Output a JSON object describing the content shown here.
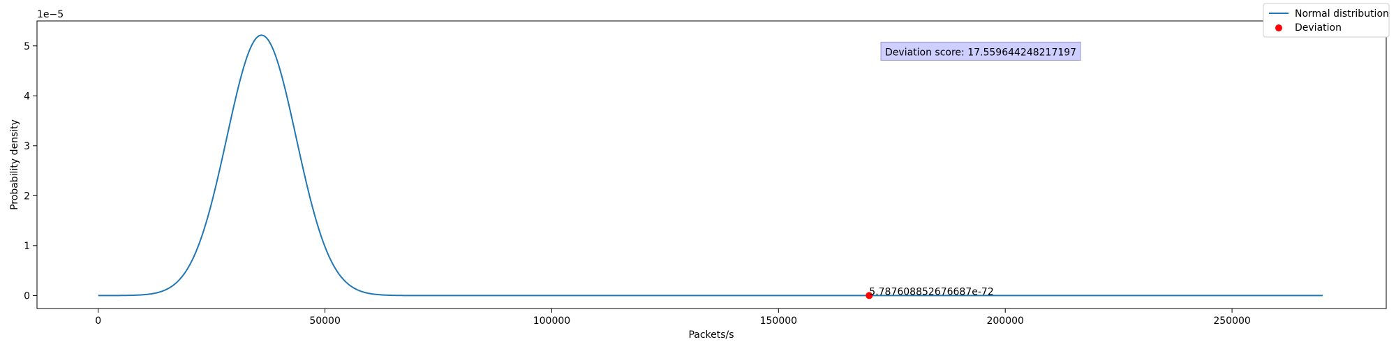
{
  "chart_data": {
    "type": "line",
    "xlabel": "Packets/s",
    "ylabel": "Probability density",
    "y_scale_label": "1e−5",
    "xlim": [
      -13500,
      284000
    ],
    "ylim": [
      -2.6e-06,
      5.5e-05
    ],
    "x_ticks": [
      0,
      50000,
      100000,
      150000,
      200000,
      250000
    ],
    "x_tick_labels": [
      "0",
      "50000",
      "100000",
      "150000",
      "200000",
      "250000"
    ],
    "y_ticks": [
      0,
      1e-05,
      2e-05,
      3e-05,
      4e-05,
      5e-05
    ],
    "y_tick_labels": [
      "0",
      "1",
      "2",
      "3",
      "4",
      "5"
    ],
    "grid": false,
    "legend_placement": "top-right",
    "series": [
      {
        "name": "Normal distribution",
        "kind": "line",
        "color": "#1f77b4",
        "distribution": {
          "mean": 36000,
          "std": 7650,
          "x_min": 0,
          "x_max": 270000
        }
      },
      {
        "name": "Deviation",
        "kind": "scatter",
        "color": "#ff0000",
        "points": [
          {
            "x": 170000,
            "y": 5.787608852676687e-72
          }
        ]
      }
    ],
    "annotations": [
      {
        "text": "5.787608852676687e-72",
        "x": 170000,
        "y": 5.787608852676687e-72
      },
      {
        "text": "Deviation score: 17.559644248217197",
        "x": 173500,
        "y": 4.88e-05,
        "box_color": "#ccccff"
      }
    ]
  }
}
